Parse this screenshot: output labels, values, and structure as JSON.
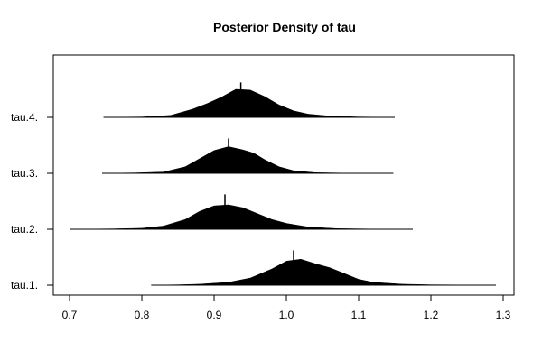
{
  "chart_data": {
    "type": "density-ridgeline",
    "title": "Posterior Density of tau",
    "xlabel": "",
    "ylabel": "",
    "xlim": [
      0.7,
      1.3
    ],
    "x_ticks": [
      "0.7",
      "0.8",
      "0.9",
      "1.0",
      "1.1",
      "1.2",
      "1.3"
    ],
    "grid": false,
    "categories": [
      "tau.1.",
      "tau.2.",
      "tau.3.",
      "tau.4."
    ],
    "series": [
      {
        "name": "tau.1.",
        "range": [
          0.813,
          1.29
        ],
        "median": 1.01,
        "density": [
          [
            0.813,
            0
          ],
          [
            0.85,
            0.01
          ],
          [
            0.88,
            0.03
          ],
          [
            0.92,
            0.09
          ],
          [
            0.95,
            0.22
          ],
          [
            0.98,
            0.5
          ],
          [
            1.0,
            0.74
          ],
          [
            1.02,
            0.8
          ],
          [
            1.04,
            0.66
          ],
          [
            1.06,
            0.54
          ],
          [
            1.08,
            0.36
          ],
          [
            1.1,
            0.18
          ],
          [
            1.12,
            0.09
          ],
          [
            1.16,
            0.03
          ],
          [
            1.2,
            0.01
          ],
          [
            1.29,
            0
          ]
        ]
      },
      {
        "name": "tau.2.",
        "range": [
          0.7,
          1.175
        ],
        "median": 0.915,
        "density": [
          [
            0.7,
            0
          ],
          [
            0.76,
            0.01
          ],
          [
            0.8,
            0.03
          ],
          [
            0.83,
            0.1
          ],
          [
            0.86,
            0.3
          ],
          [
            0.88,
            0.55
          ],
          [
            0.9,
            0.72
          ],
          [
            0.92,
            0.75
          ],
          [
            0.94,
            0.66
          ],
          [
            0.96,
            0.48
          ],
          [
            0.98,
            0.3
          ],
          [
            1.0,
            0.18
          ],
          [
            1.03,
            0.07
          ],
          [
            1.07,
            0.02
          ],
          [
            1.12,
            0.005
          ],
          [
            1.175,
            0
          ]
        ]
      },
      {
        "name": "tau.3.",
        "range": [
          0.745,
          1.148
        ],
        "median": 0.92,
        "density": [
          [
            0.745,
            0
          ],
          [
            0.79,
            0.01
          ],
          [
            0.83,
            0.04
          ],
          [
            0.86,
            0.2
          ],
          [
            0.88,
            0.45
          ],
          [
            0.9,
            0.7
          ],
          [
            0.92,
            0.82
          ],
          [
            0.94,
            0.72
          ],
          [
            0.955,
            0.62
          ],
          [
            0.97,
            0.42
          ],
          [
            0.99,
            0.2
          ],
          [
            1.01,
            0.08
          ],
          [
            1.04,
            0.02
          ],
          [
            1.08,
            0.005
          ],
          [
            1.148,
            0
          ]
        ]
      },
      {
        "name": "tau.4.",
        "range": [
          0.747,
          1.15
        ],
        "median": 0.937,
        "density": [
          [
            0.747,
            0
          ],
          [
            0.8,
            0.01
          ],
          [
            0.84,
            0.06
          ],
          [
            0.87,
            0.25
          ],
          [
            0.89,
            0.42
          ],
          [
            0.91,
            0.62
          ],
          [
            0.93,
            0.86
          ],
          [
            0.95,
            0.84
          ],
          [
            0.97,
            0.64
          ],
          [
            0.99,
            0.38
          ],
          [
            1.01,
            0.2
          ],
          [
            1.03,
            0.1
          ],
          [
            1.06,
            0.04
          ],
          [
            1.1,
            0.01
          ],
          [
            1.15,
            0
          ]
        ]
      }
    ]
  }
}
